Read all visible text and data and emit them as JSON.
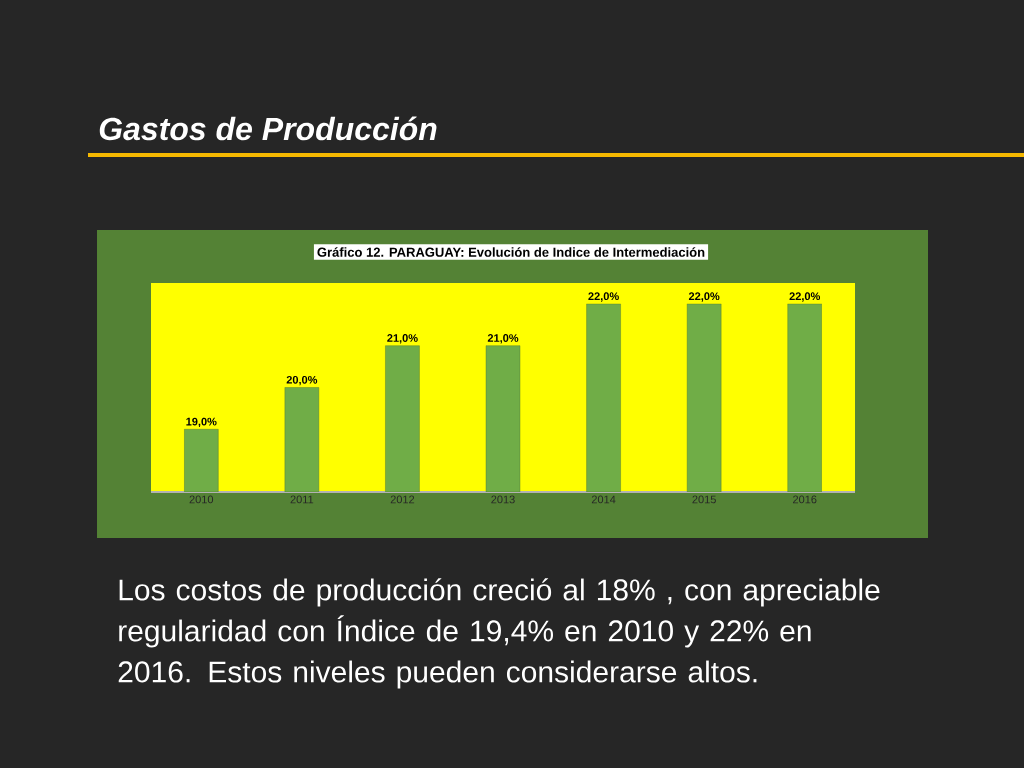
{
  "chart_data": {
    "type": "bar",
    "title": "Gastos de Producción",
    "subtitle": "Gráfico 12. PARAGUAY: Evolución de Indice de Intermediación",
    "categories": [
      "2010",
      "2011",
      "2012",
      "2013",
      "2014",
      "2015",
      "2016"
    ],
    "values": [
      19,
      20,
      21,
      21,
      22,
      22,
      22
    ],
    "value_labels": [
      "19,0%",
      "20,0%",
      "21,0%",
      "21,0%",
      "22,0%",
      "22,0%",
      "22,0%"
    ],
    "color": "#70ad47",
    "ylim": [
      17.5,
      22.5
    ],
    "tick_labels": "x",
    "annotations": [
      "Los costos de producción creció al 18% , con apreciable regularidad con Índice de 19,4% en 2010 y 22% en 2016. Estos niveles pueden considerarse altos."
    ]
  }
}
